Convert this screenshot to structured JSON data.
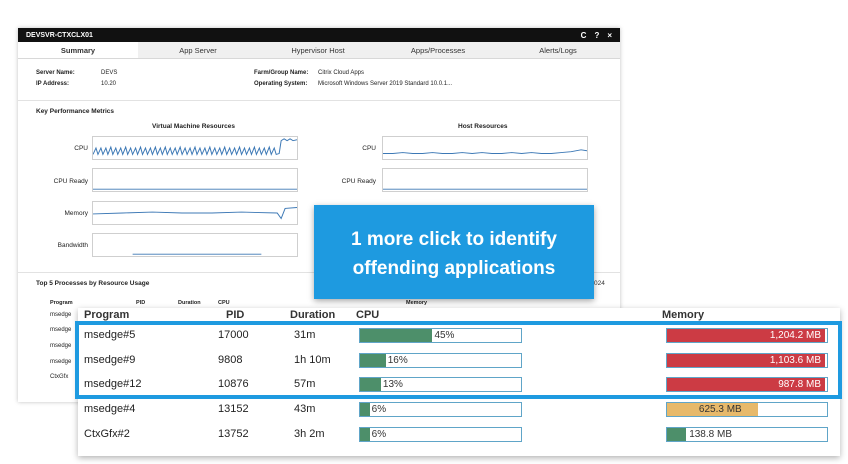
{
  "window": {
    "title": "DEVSVR-CTXCLX01",
    "controls": [
      "C",
      "?",
      "×"
    ],
    "tabs": [
      "Summary",
      "App Server",
      "Hypervisor Host",
      "Apps/Processes",
      "Alerts/Logs"
    ]
  },
  "info": {
    "server_name_label": "Server Name:",
    "server_name_value": "DEVS",
    "ip_label": "IP Address:",
    "ip_value": "10.20",
    "farm_label": "Farm/Group Name:",
    "farm_value": "Citrix Cloud Apps",
    "os_label": "Operating System:",
    "os_value": "Microsoft Windows Server 2019 Standard 10.0.1..."
  },
  "kpm": {
    "title": "Key Performance Metrics",
    "vm_title": "Virtual Machine Resources",
    "host_title": "Host Resources",
    "vm_metrics": [
      "CPU",
      "CPU Ready",
      "Memory",
      "Bandwidth"
    ],
    "host_metrics": [
      "CPU",
      "CPU Ready"
    ]
  },
  "top5": {
    "title": "Top 5 Processes by Resource Usage",
    "headers": [
      "Program",
      "PID",
      "Duration",
      "CPU",
      "Memory"
    ],
    "bg_rows": [
      "msedge",
      "msedge",
      "msedge",
      "msedge",
      "CtxGfx"
    ],
    "corner_number": "024"
  },
  "callout": {
    "line1": "1 more click to identify",
    "line2": "offending applications"
  },
  "zoom": {
    "headers": {
      "program": "Program",
      "pid": "PID",
      "duration": "Duration",
      "cpu": "CPU",
      "memory": "Memory"
    },
    "rows": [
      {
        "program": "msedge#5",
        "pid": "17000",
        "duration": "31m",
        "cpu_label": "45%",
        "cpu": 0.45,
        "mem_label": "1,204.2 MB",
        "mem": 0.99,
        "mem_color": "#cc3b44"
      },
      {
        "program": "msedge#9",
        "pid": "9808",
        "duration": "1h 10m",
        "cpu_label": "16%",
        "cpu": 0.16,
        "mem_label": "1,103.6 MB",
        "mem": 0.99,
        "mem_color": "#cc3b44"
      },
      {
        "program": "msedge#12",
        "pid": "10876",
        "duration": "57m",
        "cpu_label": "13%",
        "cpu": 0.13,
        "mem_label": "987.8 MB",
        "mem": 0.99,
        "mem_color": "#cc3b44"
      },
      {
        "program": "msedge#4",
        "pid": "13152",
        "duration": "43m",
        "cpu_label": "6%",
        "cpu": 0.06,
        "mem_label": "625.3 MB",
        "mem": 0.57,
        "mem_color": "#e7b96a"
      },
      {
        "program": "CtxGfx#2",
        "pid": "13752",
        "duration": "3h 2m",
        "cpu_label": "6%",
        "cpu": 0.06,
        "mem_label": "138.8 MB",
        "mem": 0.12,
        "mem_color": "#4d8f6a"
      }
    ],
    "cpu_color": "#4d8f6a"
  }
}
